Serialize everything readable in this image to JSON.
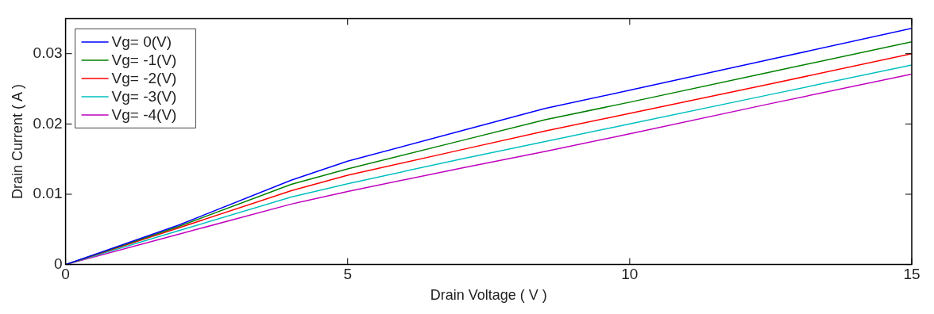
{
  "chart_data": {
    "type": "line",
    "xlabel": "Drain Voltage ( V )",
    "ylabel": "Drain Current ( A )",
    "x": [
      0,
      2,
      4,
      5,
      7,
      8.5,
      10,
      12.5,
      15
    ],
    "series": [
      {
        "name": "Vg= 0(V)",
        "color": "#0000ff",
        "values": [
          0,
          0.0056,
          0.012,
          0.0147,
          0.019,
          0.0222,
          0.0248,
          0.0292,
          0.0336
        ]
      },
      {
        "name": "Vg= -1(V)",
        "color": "#008000",
        "values": [
          0,
          0.0054,
          0.0114,
          0.0136,
          0.0176,
          0.0206,
          0.0231,
          0.0274,
          0.0317
        ]
      },
      {
        "name": "Vg= -2(V)",
        "color": "#ff0000",
        "values": [
          0,
          0.0052,
          0.0105,
          0.0127,
          0.0163,
          0.019,
          0.0215,
          0.0257,
          0.03
        ]
      },
      {
        "name": "Vg= -3(V)",
        "color": "#00bfbf",
        "values": [
          0,
          0.0048,
          0.0096,
          0.0115,
          0.015,
          0.0175,
          0.02,
          0.0242,
          0.0284
        ]
      },
      {
        "name": "Vg= -4(V)",
        "color": "#bf00bf",
        "values": [
          0,
          0.0043,
          0.0086,
          0.0104,
          0.0137,
          0.0161,
          0.0186,
          0.0229,
          0.0271
        ]
      }
    ],
    "xlim": [
      0,
      15
    ],
    "xticks": [
      0,
      5,
      10,
      15
    ],
    "ylim": [
      0,
      0.035
    ],
    "yticks": [
      0,
      0.01,
      0.02,
      0.03
    ],
    "grid": false,
    "legend": "top left",
    "marker": "none",
    "line_style": "solid"
  }
}
